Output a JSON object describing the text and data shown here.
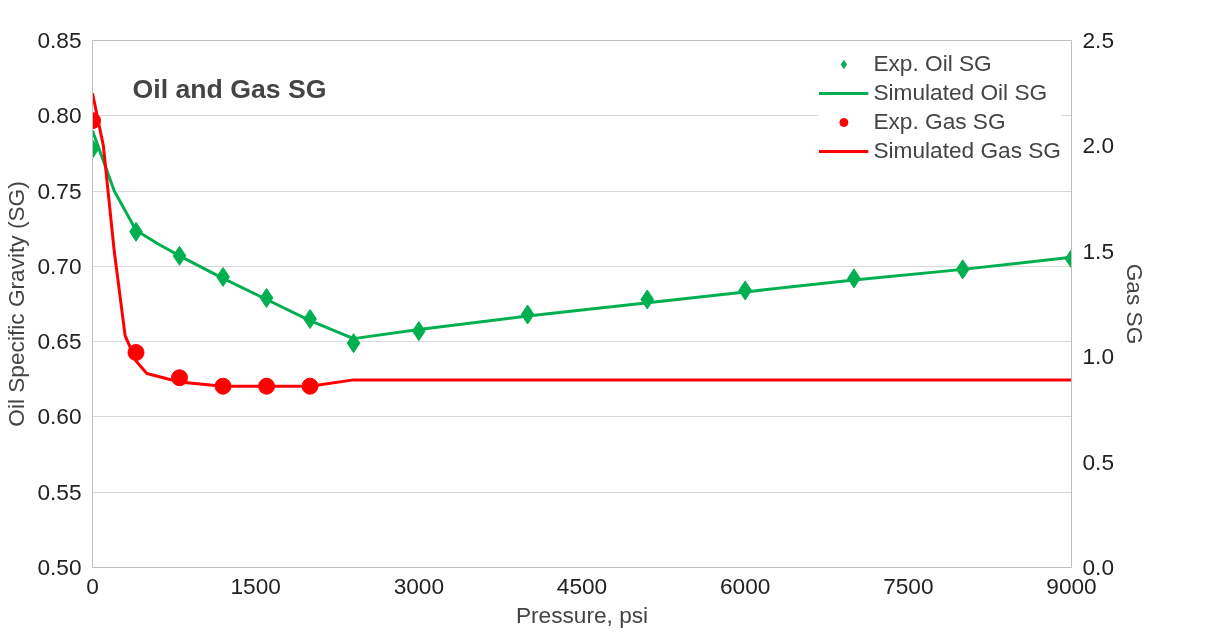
{
  "chart_data": {
    "type": "line",
    "title": "Oil and Gas SG",
    "xlabel": "Pressure, psi",
    "ylabel": "Oil Specific Gravity (SG)",
    "y2label": "Gas SG",
    "xlim": [
      0,
      9000
    ],
    "xticks": [
      0,
      1500,
      3000,
      4500,
      6000,
      7500,
      9000
    ],
    "ylim": [
      0.5,
      0.85
    ],
    "yticks": [
      {
        "value": 0.5,
        "label": "0.50"
      },
      {
        "value": 0.55,
        "label": "0.55"
      },
      {
        "value": 0.6,
        "label": "0.60"
      },
      {
        "value": 0.65,
        "label": "0.65"
      },
      {
        "value": 0.7,
        "label": "0.70"
      },
      {
        "value": 0.75,
        "label": "0.75"
      },
      {
        "value": 0.8,
        "label": "0.80"
      },
      {
        "value": 0.85,
        "label": "0.85"
      }
    ],
    "y2lim": [
      0,
      2.5
    ],
    "y2ticks": [
      {
        "value": 0,
        "label": "0.0"
      },
      {
        "value": 0.5,
        "label": "0.5"
      },
      {
        "value": 1,
        "label": "1.0"
      },
      {
        "value": 1.5,
        "label": "1.5"
      },
      {
        "value": 2,
        "label": "2.0"
      },
      {
        "value": 2.5,
        "label": "2.5"
      }
    ],
    "grid": "y",
    "legend": "top right",
    "series": [
      {
        "name": "Exp. Oil SG",
        "type": "scatter",
        "marker": "diamond",
        "color": "#00b050",
        "x": [
          0,
          400,
          800,
          1200,
          1600,
          2000,
          2400,
          3000,
          4000,
          5100,
          6000,
          7000,
          8000,
          9000
        ],
        "values": [
          0.778,
          0.723,
          0.707,
          0.693,
          0.679,
          0.665,
          0.649,
          0.657,
          0.668,
          0.678,
          0.684,
          0.692,
          0.698,
          0.705
        ]
      },
      {
        "name": "Simulated Oil SG",
        "color": "#00b050",
        "x": [
          0,
          200,
          400,
          600,
          800,
          1200,
          1600,
          2000,
          2400,
          3000,
          4000,
          5000,
          6000,
          7000,
          8000,
          9000
        ],
        "values": [
          0.79,
          0.75,
          0.724,
          0.715,
          0.707,
          0.692,
          0.678,
          0.664,
          0.652,
          0.658,
          0.667,
          0.675,
          0.683,
          0.691,
          0.698,
          0.706
        ]
      },
      {
        "name": "Exp. Gas SG",
        "type": "scatter",
        "marker": "circle",
        "axis": "y2",
        "color": "#ff0000",
        "x": [
          0,
          400,
          800,
          1200,
          1600,
          2000
        ],
        "values": [
          2.12,
          1.02,
          0.9,
          0.86,
          0.86,
          0.86
        ]
      },
      {
        "name": "Simulated Gas SG",
        "axis": "y2",
        "color": "#ff0000",
        "x": [
          0,
          100,
          200,
          300,
          400,
          500,
          800,
          1200,
          2000,
          2400,
          9000
        ],
        "values": [
          2.25,
          2.0,
          1.5,
          1.1,
          0.98,
          0.92,
          0.88,
          0.86,
          0.86,
          0.89,
          0.89
        ]
      }
    ]
  }
}
